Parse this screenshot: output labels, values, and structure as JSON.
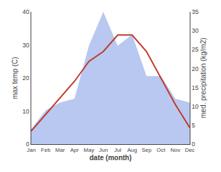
{
  "chart_data": {
    "type": "line",
    "categories": [
      "Jan",
      "Feb",
      "Mar",
      "Apr",
      "May",
      "Jun",
      "Jul",
      "Aug",
      "Sep",
      "Oct",
      "Nov",
      "Dec"
    ],
    "x_label": "date (month)",
    "y_label": "max temp (C)",
    "y2_label": "med. precipitation (kg/m2)",
    "series": [
      {
        "type": "area",
        "axis": "y2",
        "color": "#b8c8f0",
        "values": [
          4,
          9,
          11,
          12,
          26,
          35,
          26,
          29,
          18,
          18,
          12,
          11
        ]
      },
      {
        "type": "line",
        "color": "#c0392b",
        "values": [
          4,
          9,
          14,
          19,
          25,
          28,
          33,
          33,
          28,
          20,
          12,
          5
        ]
      }
    ],
    "ylim": [
      0,
      40
    ],
    "yticks": [
      0,
      10,
      20,
      30,
      40
    ],
    "y2lim": [
      0,
      35
    ],
    "y2ticks": [
      0,
      5,
      10,
      15,
      20,
      25,
      30,
      35
    ],
    "grid": false
  }
}
